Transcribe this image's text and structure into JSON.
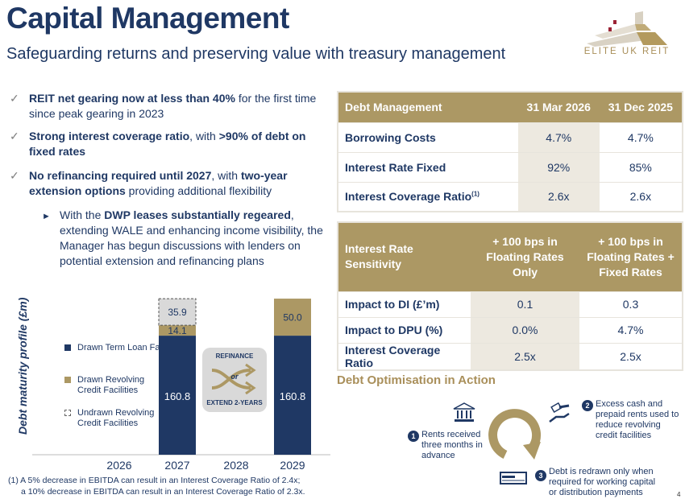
{
  "header": {
    "title": "Capital Management",
    "subtitle": "Safeguarding returns and preserving value with treasury management",
    "logo_text": "ELITE UK REIT"
  },
  "bullets": [
    {
      "bold": "REIT net gearing now at less than 40%",
      "rest": " for the first time since peak gearing in 2023"
    },
    {
      "bold": "Strong interest coverage ratio",
      "rest": ", with >90% of debt on fixed rates",
      "bold2": ">90% of debt on fixed rates"
    },
    {
      "bold": "No refinancing required until 2027",
      "rest": ", with ",
      "bold2": "two-year extension options",
      "rest2": " providing additional flexibility"
    }
  ],
  "sub_bullet": {
    "pre": "With the ",
    "bold": "DWP leases substantially regeared",
    "rest": ", extending WALE and enhancing income visibility, the Manager has begun discussions with lenders on potential extension and refinancing plans"
  },
  "debt_table": {
    "headers": [
      "Debt Management",
      "31 Mar 2026",
      "31 Dec 2025"
    ],
    "rows": [
      [
        "Borrowing Costs",
        "4.7%",
        "4.7%"
      ],
      [
        "Interest Rate Fixed",
        "92%",
        "85%"
      ],
      [
        "Interest Coverage Ratio",
        "2.6x",
        "2.6x"
      ]
    ],
    "footnote_marker": "(1)"
  },
  "sensitivity_table": {
    "headers": [
      "Interest Rate Sensitivity",
      "+ 100 bps in Floating Rates Only",
      "+ 100 bps in Floating Rates + Fixed Rates"
    ],
    "rows": [
      [
        "Impact to DI (£’m)",
        "0.1",
        "0.3"
      ],
      [
        "Impact to DPU (%)",
        "0.0%",
        "4.7%"
      ],
      [
        "Interest Coverage Ratio",
        "2.5x",
        "2.5x"
      ]
    ]
  },
  "optimisation": {
    "title": "Debt Optimisation in Action",
    "steps": [
      {
        "n": "1",
        "text": "Rents received three months in advance"
      },
      {
        "n": "2",
        "text": "Excess cash and prepaid rents used to reduce revolving credit facilities"
      },
      {
        "n": "3",
        "text": "Debt is redrawn only when required for working capital or distribution payments"
      }
    ]
  },
  "chart_data": {
    "type": "bar",
    "stacked": true,
    "ylabel": "Debt maturity profile (£m)",
    "categories": [
      "2026",
      "2027",
      "2028",
      "2029"
    ],
    "series": [
      {
        "name": "Drawn Term Loan Facilities",
        "color": "#1f3864",
        "values": [
          0,
          160.8,
          0,
          160.8
        ]
      },
      {
        "name": "Drawn Revolving Credit Facilities",
        "color": "#ac9864",
        "values": [
          0,
          14.1,
          0,
          50.0
        ]
      },
      {
        "name": "Undrawn Revolving Credit Facilities",
        "color": "#d9d9d9",
        "values": [
          0,
          35.9,
          0,
          0
        ]
      }
    ],
    "labels": {
      "l2027a": "160.8",
      "l2027b": "14.1",
      "l2027c": "35.9",
      "l2029a": "160.8",
      "l2029b": "50.0"
    },
    "annotation": {
      "top": "REFINANCE",
      "mid": "or",
      "bottom": "EXTEND 2-YEARS"
    },
    "legend": "left"
  },
  "footnote": [
    "(1)  A 5% decrease in EBITDA can result in an Interest Coverage Ratio of 2.4x;",
    "      a 10% decrease in EBITDA can result in an Interest Coverage Ratio of 2.3x."
  ],
  "page_number": "4"
}
